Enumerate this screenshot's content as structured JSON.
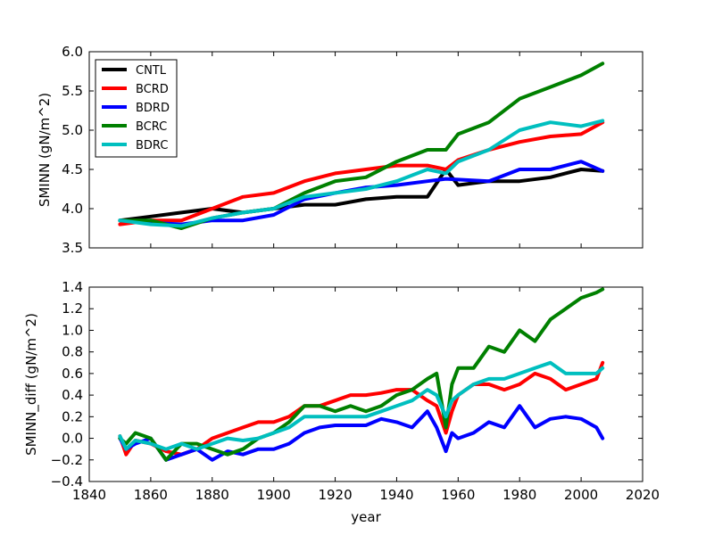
{
  "chart_data": [
    {
      "type": "line",
      "xlabel": "",
      "ylabel": "SMINN (gN/m^2)",
      "xlim": [
        1840,
        2020
      ],
      "ylim": [
        3.5,
        6.0
      ],
      "yticks": [
        "3.5",
        "4.0",
        "4.5",
        "5.0",
        "5.5",
        "6.0"
      ],
      "legend_position": "upper-left",
      "x": [
        1850,
        1860,
        1870,
        1880,
        1890,
        1900,
        1910,
        1920,
        1930,
        1940,
        1950,
        1956,
        1960,
        1970,
        1980,
        1990,
        2000,
        2007
      ],
      "series": [
        {
          "name": "CNTL",
          "color": "#000000",
          "values": [
            3.85,
            3.9,
            3.95,
            4.0,
            3.95,
            4.0,
            4.05,
            4.05,
            4.12,
            4.15,
            4.15,
            4.5,
            4.3,
            4.35,
            4.35,
            4.4,
            4.5,
            4.48
          ]
        },
        {
          "name": "BCRD",
          "color": "#ff0000",
          "values": [
            3.8,
            3.85,
            3.85,
            4.0,
            4.15,
            4.2,
            4.35,
            4.45,
            4.5,
            4.55,
            4.55,
            4.5,
            4.62,
            4.75,
            4.85,
            4.92,
            4.95,
            5.1
          ]
        },
        {
          "name": "BDRD",
          "color": "#0000ff",
          "values": [
            3.85,
            3.82,
            3.8,
            3.85,
            3.85,
            3.92,
            4.12,
            4.2,
            4.27,
            4.3,
            4.35,
            4.38,
            4.37,
            4.35,
            4.5,
            4.5,
            4.6,
            4.48
          ]
        },
        {
          "name": "BCRC",
          "color": "#008000",
          "values": [
            3.85,
            3.85,
            3.75,
            3.88,
            3.95,
            4.0,
            4.2,
            4.35,
            4.4,
            4.6,
            4.75,
            4.75,
            4.95,
            5.1,
            5.4,
            5.55,
            5.7,
            5.85
          ]
        },
        {
          "name": "BDRC",
          "color": "#00bfbf",
          "values": [
            3.85,
            3.8,
            3.78,
            3.88,
            3.95,
            4.0,
            4.15,
            4.2,
            4.25,
            4.35,
            4.5,
            4.45,
            4.6,
            4.75,
            5.0,
            5.1,
            5.05,
            5.12
          ]
        }
      ]
    },
    {
      "type": "line",
      "xlabel": "year",
      "ylabel": "SMINN_diff (gN/m^2)",
      "xlim": [
        1840,
        2020
      ],
      "ylim": [
        -0.4,
        1.4
      ],
      "xticks": [
        "1840",
        "1860",
        "1880",
        "1900",
        "1920",
        "1940",
        "1960",
        "1980",
        "2000",
        "2020"
      ],
      "yticks": [
        "−0.4",
        "−0.2",
        "0.0",
        "0.2",
        "0.4",
        "0.6",
        "0.8",
        "1.0",
        "1.2",
        "1.4"
      ],
      "x": [
        1850,
        1852,
        1855,
        1860,
        1865,
        1870,
        1875,
        1880,
        1885,
        1890,
        1895,
        1900,
        1905,
        1910,
        1915,
        1920,
        1925,
        1930,
        1935,
        1940,
        1945,
        1950,
        1953,
        1956,
        1958,
        1960,
        1965,
        1970,
        1975,
        1980,
        1985,
        1990,
        1995,
        2000,
        2005,
        2007
      ],
      "series": [
        {
          "name": "BCRD",
          "color": "#ff0000",
          "values": [
            0.02,
            -0.15,
            -0.02,
            -0.05,
            -0.12,
            -0.15,
            -0.1,
            0.0,
            0.05,
            0.1,
            0.15,
            0.15,
            0.2,
            0.3,
            0.3,
            0.35,
            0.4,
            0.4,
            0.42,
            0.45,
            0.45,
            0.35,
            0.3,
            0.05,
            0.25,
            0.4,
            0.5,
            0.5,
            0.45,
            0.5,
            0.6,
            0.55,
            0.45,
            0.5,
            0.55,
            0.7
          ]
        },
        {
          "name": "BDRD",
          "color": "#0000ff",
          "values": [
            0.0,
            -0.1,
            -0.05,
            0.0,
            -0.2,
            -0.15,
            -0.1,
            -0.2,
            -0.12,
            -0.15,
            -0.1,
            -0.1,
            -0.05,
            0.05,
            0.1,
            0.12,
            0.12,
            0.12,
            0.18,
            0.15,
            0.1,
            0.25,
            0.1,
            -0.12,
            0.05,
            0.0,
            0.05,
            0.15,
            0.1,
            0.3,
            0.1,
            0.18,
            0.2,
            0.18,
            0.1,
            0.0
          ]
        },
        {
          "name": "BCRC",
          "color": "#008000",
          "values": [
            0.0,
            -0.05,
            0.05,
            0.0,
            -0.2,
            -0.05,
            -0.05,
            -0.1,
            -0.15,
            -0.1,
            0.0,
            0.05,
            0.15,
            0.3,
            0.3,
            0.25,
            0.3,
            0.25,
            0.3,
            0.4,
            0.45,
            0.55,
            0.6,
            0.1,
            0.5,
            0.65,
            0.65,
            0.85,
            0.8,
            1.0,
            0.9,
            1.1,
            1.2,
            1.3,
            1.35,
            1.38
          ]
        },
        {
          "name": "BDRC",
          "color": "#00bfbf",
          "values": [
            0.02,
            -0.1,
            -0.02,
            -0.05,
            -0.1,
            -0.05,
            -0.1,
            -0.05,
            0.0,
            -0.02,
            0.0,
            0.05,
            0.1,
            0.2,
            0.2,
            0.2,
            0.2,
            0.2,
            0.25,
            0.3,
            0.35,
            0.45,
            0.4,
            0.2,
            0.35,
            0.4,
            0.5,
            0.55,
            0.55,
            0.6,
            0.65,
            0.7,
            0.6,
            0.6,
            0.6,
            0.65
          ]
        }
      ]
    }
  ]
}
